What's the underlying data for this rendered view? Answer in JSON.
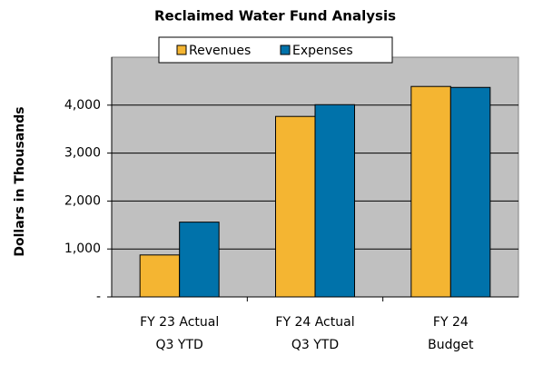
{
  "chart_data": {
    "type": "bar",
    "title": "Reclaimed Water Fund Analysis",
    "y_label": "Dollars in Thousands",
    "categories": [
      [
        "FY 23 Actual",
        "Q3 YTD"
      ],
      [
        "FY 24 Actual",
        "Q3 YTD"
      ],
      [
        "FY 24",
        "Budget"
      ]
    ],
    "series": [
      {
        "name": "Revenues",
        "color": "#f4b532",
        "values": [
          875,
          3765,
          4390
        ]
      },
      {
        "name": "Expenses",
        "color": "#0072aa",
        "values": [
          1560,
          4010,
          4370
        ]
      }
    ],
    "ylim": [
      0,
      5000
    ],
    "yticks": [
      {
        "value": 0,
        "label": "-"
      },
      {
        "value": 1000,
        "label": "1,000"
      },
      {
        "value": 2000,
        "label": "2,000"
      },
      {
        "value": 3000,
        "label": "3,000"
      },
      {
        "value": 4000,
        "label": "4,000"
      }
    ],
    "grid": true,
    "legend": "top"
  }
}
